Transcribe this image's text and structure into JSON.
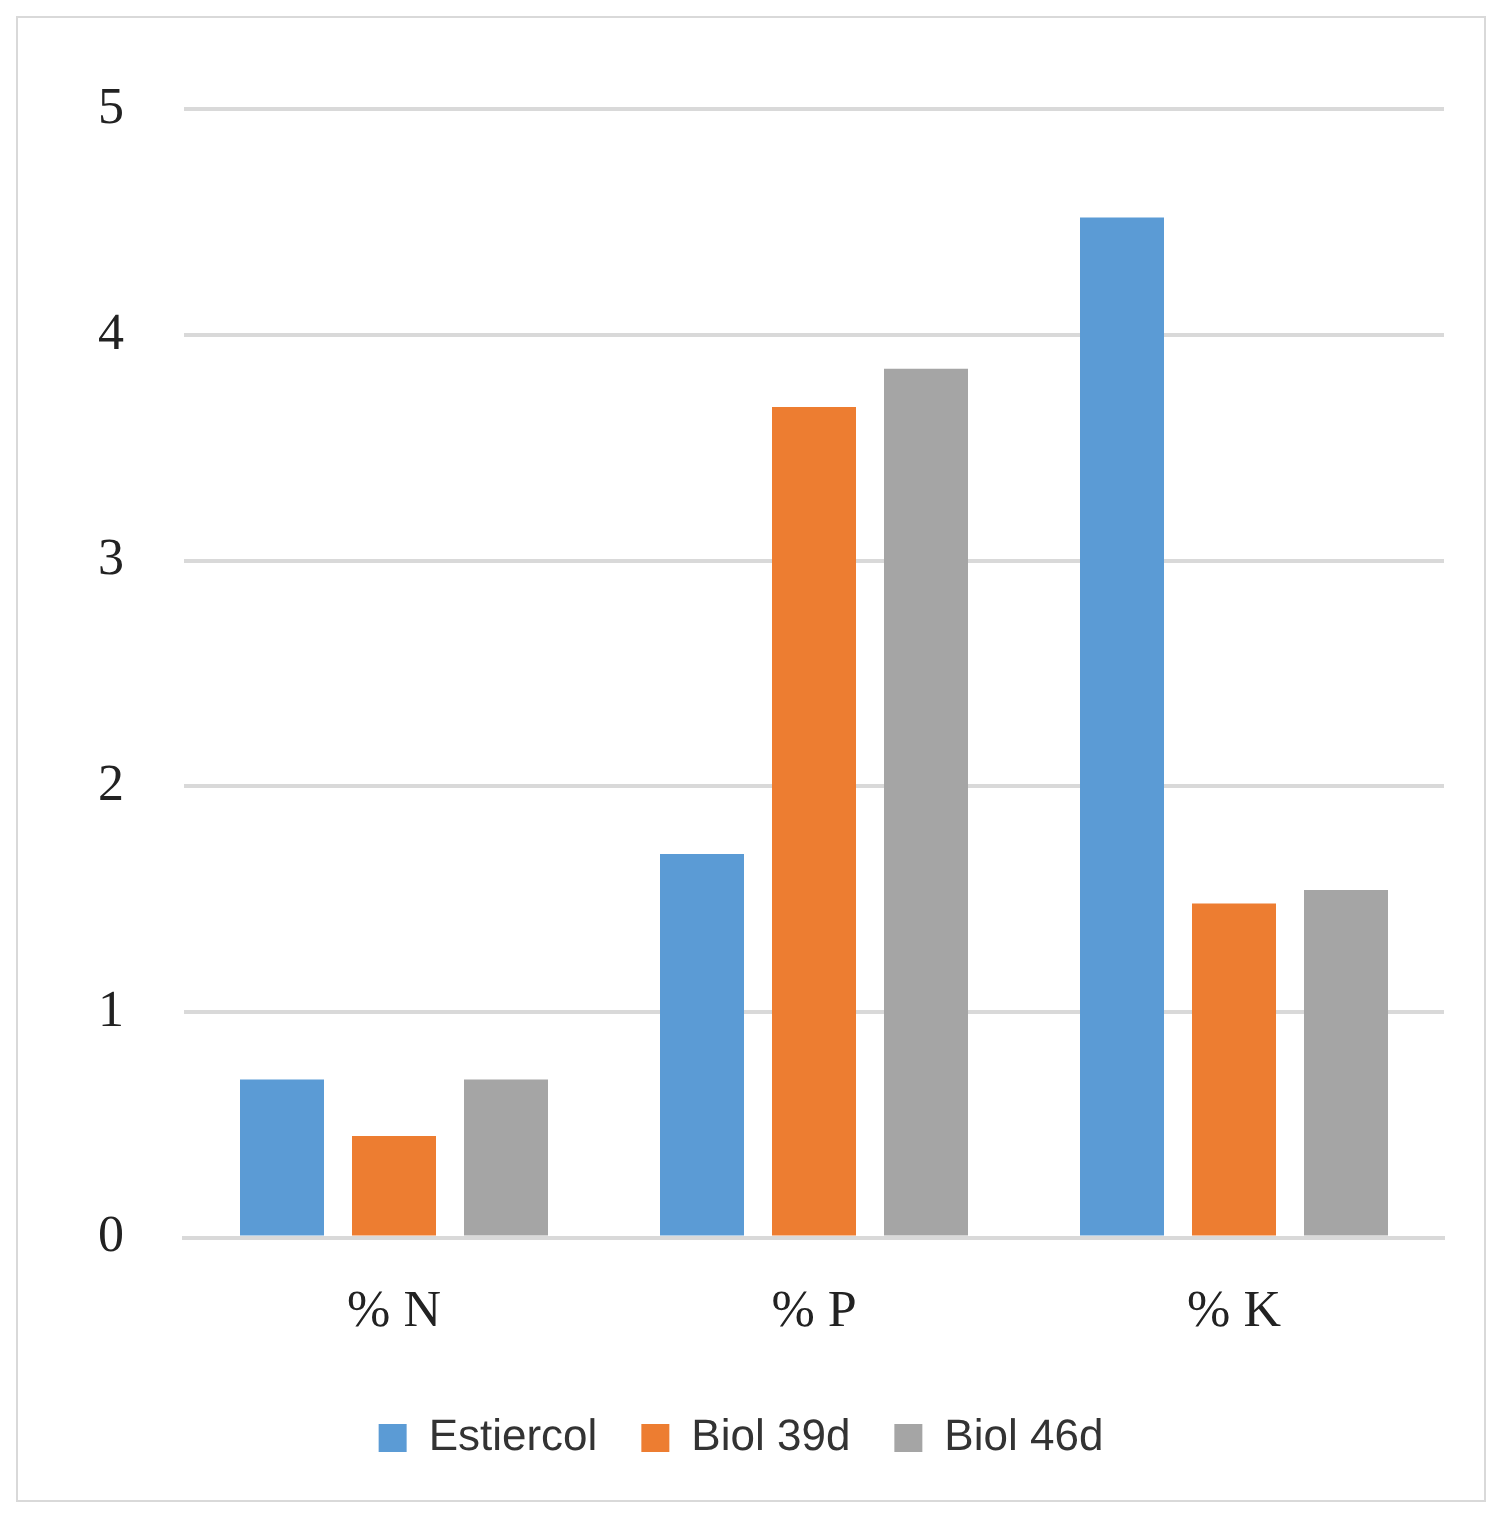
{
  "chart_data": {
    "type": "bar",
    "categories": [
      "% N",
      "% P",
      "% K"
    ],
    "series": [
      {
        "name": "Estiercol",
        "color": "#5b9bd5",
        "values": [
          0.7,
          1.7,
          4.52
        ]
      },
      {
        "name": "Biol 39d",
        "color": "#ed7d31",
        "values": [
          0.45,
          3.68,
          1.48
        ]
      },
      {
        "name": "Biol 46d",
        "color": "#a5a5a5",
        "values": [
          0.7,
          3.85,
          1.54
        ]
      }
    ],
    "ylim": [
      0,
      5
    ],
    "yticks": [
      0,
      1,
      2,
      3,
      4,
      5
    ],
    "grid": "y",
    "legend": "bottom"
  }
}
